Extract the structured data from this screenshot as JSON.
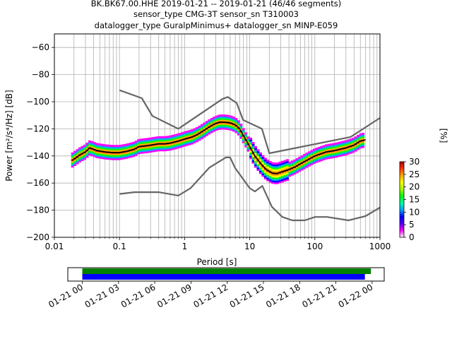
{
  "title": {
    "line1": "BK.BK67.00.HHE   2019-01-21 -- 2019-01-21  (46/46 segments)",
    "line2": "sensor_type CMG-3T sensor_sn T310003",
    "line3": "datalogger_type GuralpMinimus+ datalogger_sn MINP-E059"
  },
  "chart_data": [
    {
      "type": "heatmap",
      "xlabel": "Period [s]",
      "ylabel": "Power [m²/s⁴/Hz] [dB]",
      "x_scale": "log",
      "xlim": [
        0.01,
        1000
      ],
      "ylim": [
        -200,
        -50
      ],
      "grid": true,
      "x_ticks": [
        0.01,
        0.1,
        1,
        10,
        100,
        1000
      ],
      "x_tick_labels": [
        "0.01",
        "0.1",
        "1",
        "10",
        "100",
        "1000"
      ],
      "y_ticks": [
        -200,
        -180,
        -160,
        -140,
        -120,
        -100,
        -80,
        -60
      ],
      "y_tick_labels": [
        "−200",
        "−180",
        "−160",
        "−140",
        "−120",
        "−100",
        "−80",
        "−60"
      ],
      "colorbar": {
        "label": "[%]",
        "range": [
          0,
          30
        ],
        "ticks": [
          0,
          5,
          10,
          15,
          20,
          25,
          30
        ],
        "tick_labels": [
          "0",
          "5",
          "10",
          "15",
          "20",
          "25",
          "30"
        ],
        "colors": [
          "#ffffff",
          "#ff00ff",
          "#5500ff",
          "#0000ff",
          "#00aaff",
          "#00ffaa",
          "#00ff00",
          "#aaff00",
          "#ffff00",
          "#ffaa00",
          "#ff3300",
          "#aa0000"
        ]
      },
      "series": [
        {
          "name": "NHNM",
          "color": "#666666",
          "points": [
            [
              0.1,
              -91.5
            ],
            [
              0.22,
              -97.4
            ],
            [
              0.32,
              -110.5
            ],
            [
              0.8,
              -120
            ],
            [
              3.8,
              -98
            ],
            [
              4.6,
              -96.5
            ],
            [
              6.3,
              -101
            ],
            [
              7.9,
              -113.5
            ],
            [
              15.4,
              -120
            ],
            [
              20,
              -138
            ],
            [
              354.8,
              -126
            ],
            [
              1000,
              -112
            ]
          ]
        },
        {
          "name": "NLNM",
          "color": "#666666",
          "points": [
            [
              0.1,
              -168
            ],
            [
              0.17,
              -166.7
            ],
            [
              0.4,
              -166.7
            ],
            [
              0.8,
              -169.2
            ],
            [
              1.24,
              -163.7
            ],
            [
              2.4,
              -148.6
            ],
            [
              4.3,
              -141.1
            ],
            [
              5,
              -141.1
            ],
            [
              6,
              -149
            ],
            [
              10,
              -163.8
            ],
            [
              12,
              -166.2
            ],
            [
              15.6,
              -162.1
            ],
            [
              21.9,
              -177.5
            ],
            [
              31.6,
              -185
            ],
            [
              45,
              -187.5
            ],
            [
              70,
              -187.5
            ],
            [
              101,
              -185
            ],
            [
              154,
              -185
            ],
            [
              328,
              -187.5
            ],
            [
              600,
              -184.4
            ],
            [
              1000,
              -178
            ]
          ]
        },
        {
          "name": "mode",
          "color": "#000000",
          "points": [
            [
              0.019,
              -143
            ],
            [
              0.022,
              -141
            ],
            [
              0.025,
              -139
            ],
            [
              0.03,
              -137
            ],
            [
              0.035,
              -134
            ],
            [
              0.045,
              -136
            ],
            [
              0.06,
              -137
            ],
            [
              0.08,
              -137.5
            ],
            [
              0.1,
              -137.5
            ],
            [
              0.13,
              -136.5
            ],
            [
              0.17,
              -135
            ],
            [
              0.2,
              -133
            ],
            [
              0.25,
              -132.5
            ],
            [
              0.3,
              -132
            ],
            [
              0.4,
              -131
            ],
            [
              0.5,
              -131
            ],
            [
              0.6,
              -130.5
            ],
            [
              0.8,
              -129
            ],
            [
              1,
              -127.5
            ],
            [
              1.3,
              -126
            ],
            [
              1.6,
              -124
            ],
            [
              2,
              -121
            ],
            [
              2.5,
              -118
            ],
            [
              3,
              -116
            ],
            [
              3.5,
              -115
            ],
            [
              4,
              -115
            ],
            [
              5,
              -115.5
            ],
            [
              6,
              -117
            ],
            [
              7,
              -120
            ],
            [
              8,
              -125
            ],
            [
              10,
              -133
            ],
            [
              12,
              -140
            ],
            [
              15,
              -146
            ],
            [
              18,
              -150
            ],
            [
              22,
              -152.5
            ],
            [
              26,
              -153
            ],
            [
              30,
              -152
            ],
            [
              40,
              -150
            ],
            [
              50,
              -148
            ],
            [
              70,
              -144
            ],
            [
              100,
              -140
            ],
            [
              150,
              -137
            ],
            [
              200,
              -136
            ],
            [
              300,
              -134
            ],
            [
              400,
              -132
            ],
            [
              500,
              -129
            ],
            [
              600,
              -128
            ]
          ]
        }
      ]
    },
    {
      "type": "timeline",
      "x_tick_labels": [
        "01-21 00",
        "01-21 03",
        "01-21 06",
        "01-21 09",
        "01-21 12",
        "01-21 15",
        "01-21 18",
        "01-21 21",
        "01-22 00"
      ],
      "x_ticks_hours": [
        0,
        3,
        6,
        9,
        12,
        15,
        18,
        21,
        24
      ],
      "xlim_hours": [
        -1.2,
        25.0
      ],
      "bars": [
        {
          "name": "data",
          "color": "#008000",
          "start_hour": 0,
          "end_hour": 23.9
        },
        {
          "name": "psd",
          "color": "#0000ff",
          "start_hour": 0,
          "end_hour": 23.4
        }
      ]
    }
  ]
}
